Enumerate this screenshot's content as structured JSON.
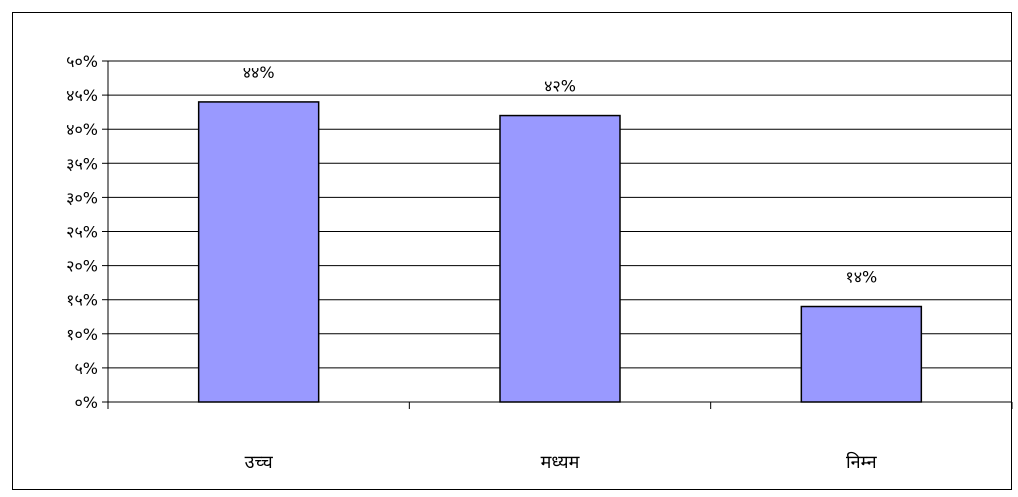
{
  "chart_data": {
    "type": "bar",
    "categories": [
      "उच्च",
      "मध्यम",
      "निम्न"
    ],
    "values": [
      44,
      42,
      14
    ],
    "data_labels": [
      "४४%",
      "४२%",
      "१४%"
    ],
    "ylim": [
      0,
      50
    ],
    "y_ticks": [
      0,
      5,
      10,
      15,
      20,
      25,
      30,
      35,
      40,
      45,
      50
    ],
    "y_tick_labels": [
      "०%",
      "५%",
      "१०%",
      "१५%",
      "२०%",
      "२५%",
      "३०%",
      "३५%",
      "४०%",
      "४५%",
      "५०%"
    ],
    "grid": true,
    "legend": "none",
    "colors": {
      "bar_fill": "#9999ff",
      "bar_stroke": "#000000",
      "grid": "#000000",
      "axis": "#000000"
    }
  }
}
